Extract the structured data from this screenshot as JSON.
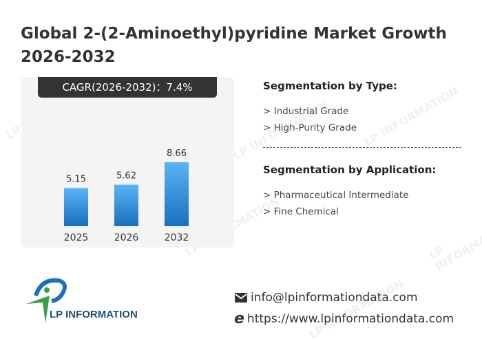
{
  "title": "Global 2-(2-Aminoethyl)pyridine Market Growth 2026-2032",
  "cagr_label": "CAGR(2026-2032)：7.4%",
  "chart_data": {
    "type": "bar",
    "categories": [
      "2025",
      "2026",
      "2032"
    ],
    "values": [
      5.15,
      5.62,
      8.66
    ],
    "value_labels": [
      "5.15",
      "5.62",
      "8.66"
    ],
    "ylim": [
      0,
      10
    ],
    "grid": false,
    "bar_color_top": "#5ab4f5",
    "bar_color_bottom": "#1a6fbf"
  },
  "segmentation_type": {
    "heading": "Segmentation by Type:",
    "items": [
      "> Industrial Grade",
      "> High-Purity Grade"
    ]
  },
  "segmentation_application": {
    "heading": "Segmentation by Application:",
    "items": [
      "> Pharmaceutical Intermediate",
      "> Fine Chemical"
    ]
  },
  "logo": {
    "text": "LP INFORMATION",
    "blue": "#1a6fbf",
    "green": "#3aa04a"
  },
  "watermark": "LP INFORMATION",
  "contact": {
    "email_icon": "envelope-icon",
    "email": "info@lpinformationdata.com",
    "web_icon": "internet-explorer-icon",
    "website": "https://www.lpinformationdata.com"
  }
}
